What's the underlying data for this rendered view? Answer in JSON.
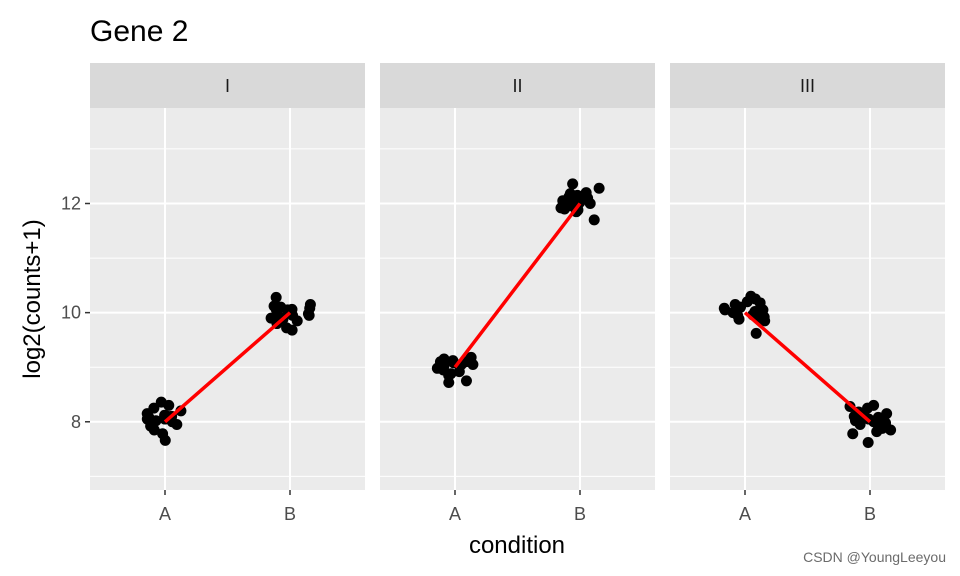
{
  "title": "Gene 2",
  "watermark": "CSDN @YoungLeeyou",
  "chart_data": {
    "type": "scatter",
    "facet_var": "panel",
    "facets": [
      {
        "label": "I",
        "means": {
          "A": 8.0,
          "B": 10.0
        },
        "points": {
          "A": [
            8.12,
            8.1,
            8.08,
            7.85,
            7.78,
            7.66,
            8.05,
            8.2,
            8.3,
            8.36,
            8.02,
            7.95,
            8.1,
            8.15,
            8.05,
            8.25,
            8.0,
            7.92
          ],
          "B": [
            9.95,
            10.02,
            10.05,
            9.9,
            9.98,
            10.08,
            10.12,
            10.05,
            9.95,
            9.8,
            9.72,
            9.68,
            9.85,
            10.1,
            10.28,
            10.15,
            10.0,
            9.92,
            10.06,
            9.88
          ]
        }
      },
      {
        "label": "II",
        "means": {
          "A": 9.0,
          "B": 12.0
        },
        "points": {
          "A": [
            9.1,
            8.75,
            8.72,
            8.85,
            8.98,
            9.05,
            9.15,
            9.18,
            9.08,
            9.02,
            8.92,
            8.88,
            9.1,
            9.05,
            9.0,
            8.95,
            9.12
          ],
          "B": [
            12.05,
            11.92,
            11.85,
            12.1,
            12.2,
            12.28,
            12.36,
            12.15,
            12.02,
            11.95,
            11.7,
            11.88,
            12.08,
            11.96,
            12.12,
            12.0,
            11.9,
            12.18
          ]
        }
      },
      {
        "label": "III",
        "means": {
          "A": 10.0,
          "B": 8.0
        },
        "points": {
          "A": [
            9.62,
            9.9,
            9.85,
            10.05,
            10.18,
            10.25,
            10.3,
            10.2,
            10.05,
            9.95,
            9.88,
            10.0,
            10.1,
            9.96,
            10.02,
            10.15,
            9.92,
            10.08
          ],
          "B": [
            8.12,
            8.3,
            8.25,
            7.78,
            7.85,
            7.62,
            7.92,
            8.0,
            8.05,
            8.1,
            7.88,
            8.15,
            7.95,
            8.28,
            8.02,
            7.9,
            8.08,
            7.82,
            7.98,
            8.18
          ]
        }
      }
    ],
    "categories": [
      "A",
      "B"
    ],
    "xlabel": "condition",
    "ylabel": "log2(counts+1)",
    "ylim": [
      6.75,
      13.75
    ],
    "yticks": [
      8,
      10,
      12
    ],
    "grid": true,
    "colors": {
      "panel_bg": "#ebebeb",
      "strip_bg": "#d9d9d9",
      "grid": "#ffffff",
      "point": "#000000",
      "mean_line": "#ff0000"
    }
  }
}
